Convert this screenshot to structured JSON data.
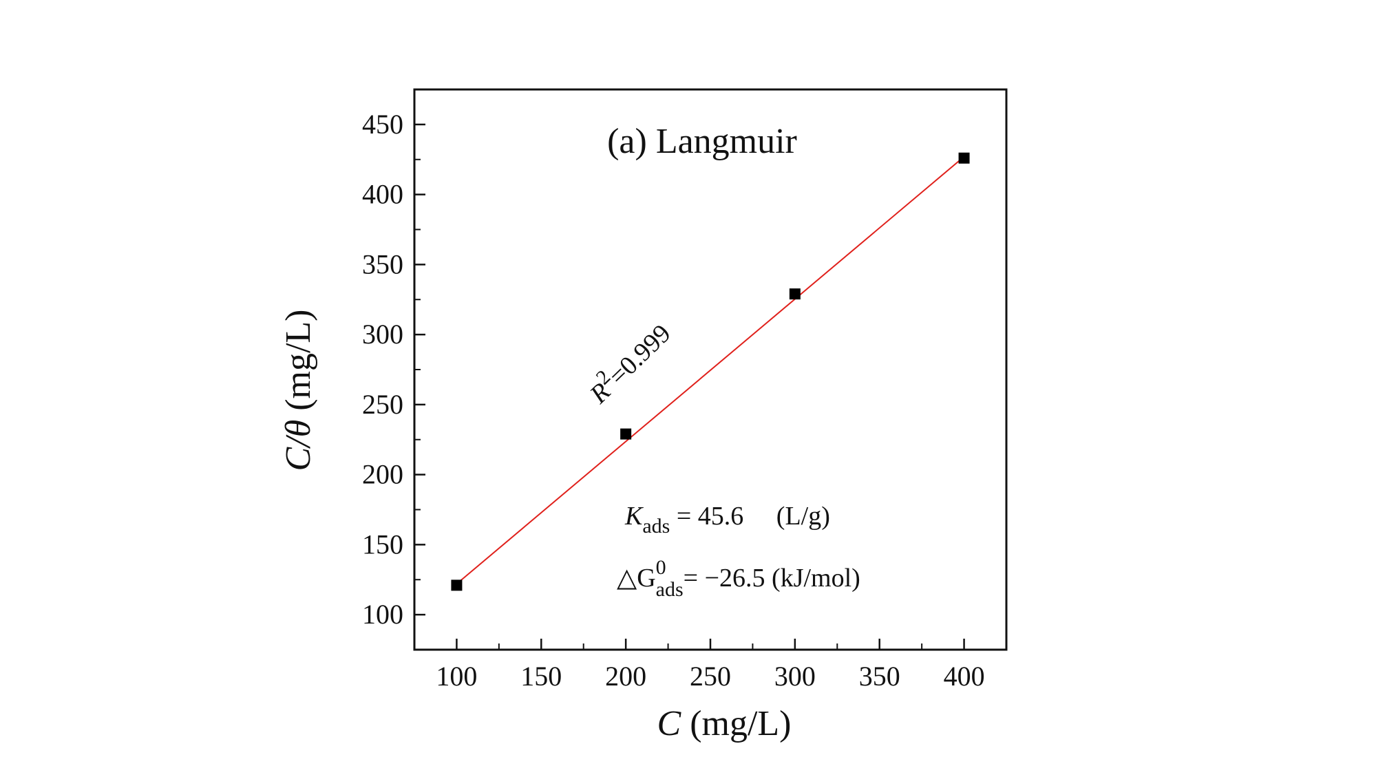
{
  "chart_data": {
    "type": "scatter",
    "title": "(a) Langmuir",
    "xlabel": {
      "var": "C",
      "unit": " (mg/L)"
    },
    "ylabel": {
      "var": "C/θ",
      "unit": " (mg/L)"
    },
    "xlim": [
      75,
      425
    ],
    "ylim": [
      75,
      475
    ],
    "xticks": [
      100,
      150,
      200,
      250,
      300,
      350,
      400
    ],
    "yticks": [
      100,
      150,
      200,
      250,
      300,
      350,
      400,
      450
    ],
    "grid": false,
    "series": [
      {
        "marker": "square",
        "color": "#000000",
        "x": [
          100,
          200,
          300,
          400
        ],
        "y": [
          121,
          229,
          329,
          426
        ]
      }
    ],
    "fit_line": {
      "color": "#e0201b",
      "x": [
        100,
        400
      ],
      "y": [
        122,
        427
      ]
    },
    "annotations": {
      "r2": {
        "prefix": "R",
        "sup": "2",
        "rest": "=0.999"
      },
      "kads": {
        "main": "K",
        "sub": "ads",
        "rest": " = 45.6     (L/g)"
      },
      "dg": {
        "main": "△G",
        "sup": "0",
        "sub": "ads",
        "rest": "= −26.5 (kJ/mol)"
      }
    }
  },
  "colors": {
    "axis": "#111111",
    "fit": "#e0201b",
    "marker": "#000000"
  }
}
